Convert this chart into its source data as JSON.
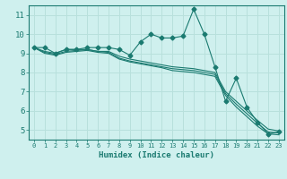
{
  "background_color": "#cff0ee",
  "grid_color": "#b8e0dc",
  "line_color": "#1a7a70",
  "xlabel": "Humidex (Indice chaleur)",
  "xlim": [
    -0.5,
    23.5
  ],
  "ylim": [
    4.5,
    11.5
  ],
  "yticks": [
    5,
    6,
    7,
    8,
    9,
    10,
    11
  ],
  "xticks": [
    0,
    1,
    2,
    3,
    4,
    5,
    6,
    7,
    8,
    9,
    10,
    11,
    12,
    13,
    14,
    15,
    16,
    17,
    18,
    19,
    20,
    21,
    22,
    23
  ],
  "series": [
    {
      "x": [
        0,
        1,
        2,
        3,
        4,
        5,
        6,
        7,
        8,
        9,
        10,
        11,
        12,
        13,
        14,
        15,
        16,
        17,
        18,
        19,
        20,
        21,
        22,
        23
      ],
      "y": [
        9.3,
        9.3,
        9.0,
        9.2,
        9.2,
        9.3,
        9.3,
        9.3,
        9.2,
        8.9,
        9.6,
        10.0,
        9.8,
        9.8,
        9.9,
        11.3,
        10.0,
        8.3,
        6.5,
        7.7,
        6.2,
        5.4,
        4.8,
        4.9
      ],
      "marker": "D",
      "markersize": 2.5
    },
    {
      "x": [
        0,
        1,
        2,
        3,
        4,
        5,
        6,
        7,
        8,
        9,
        10,
        11,
        12,
        13,
        14,
        15,
        16,
        17,
        18,
        19,
        20,
        21,
        22,
        23
      ],
      "y": [
        9.3,
        9.1,
        9.0,
        9.2,
        9.2,
        9.2,
        9.1,
        9.1,
        8.85,
        8.7,
        8.6,
        8.5,
        8.4,
        8.3,
        8.25,
        8.2,
        8.1,
        8.0,
        7.0,
        6.5,
        6.0,
        5.5,
        5.05,
        4.95
      ],
      "marker": null,
      "markersize": 0
    },
    {
      "x": [
        0,
        1,
        2,
        3,
        4,
        5,
        6,
        7,
        8,
        9,
        10,
        11,
        12,
        13,
        14,
        15,
        16,
        17,
        18,
        19,
        20,
        21,
        22,
        23
      ],
      "y": [
        9.3,
        9.05,
        8.95,
        9.1,
        9.15,
        9.2,
        9.1,
        9.05,
        8.75,
        8.6,
        8.5,
        8.4,
        8.3,
        8.2,
        8.15,
        8.1,
        8.0,
        7.9,
        6.9,
        6.35,
        5.85,
        5.35,
        4.9,
        4.85
      ],
      "marker": null,
      "markersize": 0
    },
    {
      "x": [
        0,
        1,
        2,
        3,
        4,
        5,
        6,
        7,
        8,
        9,
        10,
        11,
        12,
        13,
        14,
        15,
        16,
        17,
        18,
        19,
        20,
        21,
        22,
        23
      ],
      "y": [
        9.3,
        9.0,
        8.9,
        9.05,
        9.1,
        9.15,
        9.05,
        9.0,
        8.7,
        8.55,
        8.45,
        8.35,
        8.25,
        8.1,
        8.05,
        8.0,
        7.9,
        7.8,
        6.8,
        6.2,
        5.7,
        5.2,
        4.8,
        4.75
      ],
      "marker": null,
      "markersize": 0
    }
  ]
}
